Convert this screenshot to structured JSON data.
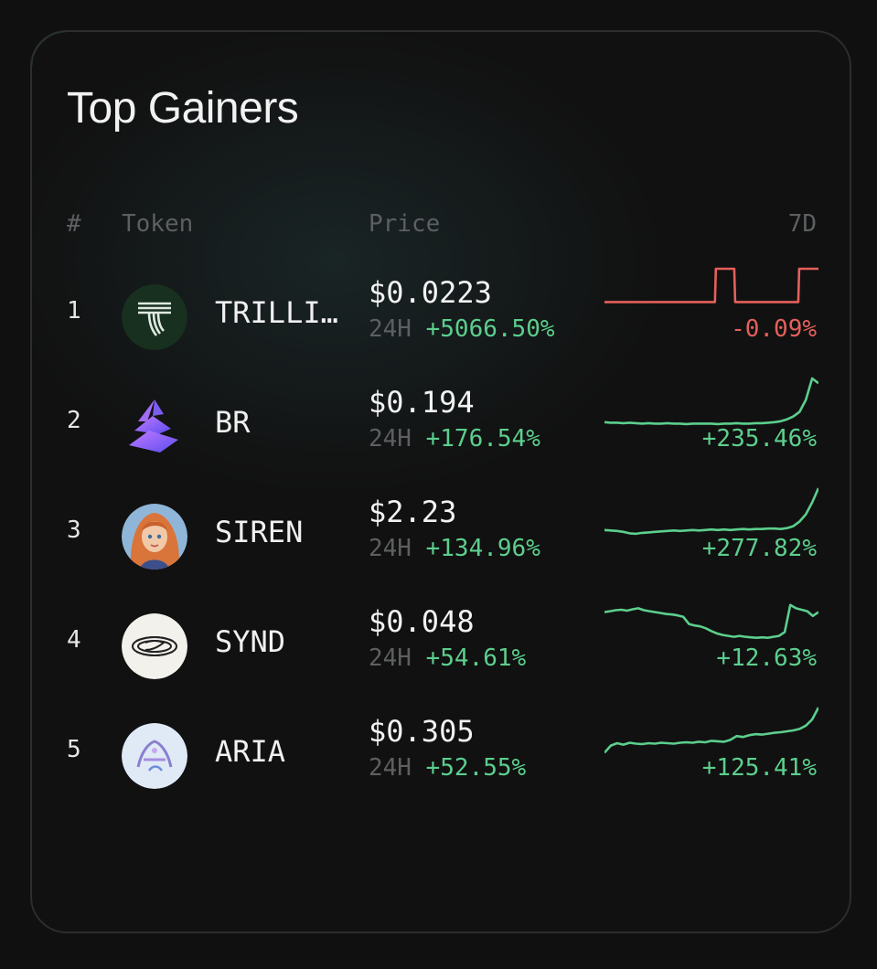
{
  "card": {
    "title": "Top Gainers",
    "columns": {
      "rank": "#",
      "token": "Token",
      "price": "Price",
      "period": "7D"
    },
    "change_label": "24H"
  },
  "colors": {
    "up": "#5ccf8d",
    "down": "#e5605a",
    "accent": "#5fd4e6"
  },
  "rows": [
    {
      "rank": "1",
      "symbol": "TRILLI…",
      "price": "$0.0223",
      "change_24h": "+5066.50%",
      "change_7d": "-0.09%",
      "trend": "down",
      "icon": "trillions-logo-icon",
      "sparkline": [
        0.3,
        0.3,
        0.3,
        0.3,
        0.3,
        0.3,
        0.3,
        0.3,
        0.3,
        0.3,
        0.3,
        0.3,
        0.3,
        0.3,
        0.3,
        0.3,
        0.3,
        0.3,
        0.3,
        0.3,
        0.3,
        0.3,
        0.3,
        0.3,
        0.3,
        0.3,
        0.3,
        0.3,
        0.3,
        0.3,
        0.3,
        0.3,
        0.3,
        0.3,
        0.3,
        0.3,
        0.3,
        0.3,
        0.3,
        0.3,
        0.3,
        0.3,
        0.3,
        0.3,
        0.3,
        0.3,
        0.3,
        0.3,
        0.3,
        0.3,
        0.3,
        0.3,
        0.3,
        0.3,
        0.3,
        0.3,
        0.3,
        0.3,
        0.3,
        0.3,
        0.3,
        0.3,
        0.3,
        0.3,
        0.3,
        0.3,
        0.3,
        0.3,
        0.3,
        0.3,
        0.3,
        0.3,
        0.3,
        0.3,
        0.3,
        0.3,
        0.3,
        0.3,
        0.3,
        0.3,
        0.3,
        0.3,
        0.3,
        0.3,
        0.3,
        0.3,
        0.3,
        0.3,
        0.3,
        0.3,
        0.3,
        0.3,
        0.3,
        0.3,
        0.3,
        0.3,
        0.3,
        0.3,
        0.3,
        0.3,
        0.3,
        0.3,
        0.3,
        0.3,
        0.3,
        0.3,
        0.3,
        0.3,
        0.3,
        0.3,
        0.3,
        0.3,
        0.3,
        0.3,
        0.3,
        0.3,
        0.3,
        0.3,
        0.3,
        0.3,
        0.3,
        0.3,
        0.3,
        0.3,
        0.3,
        0.3,
        0.3,
        1,
        1,
        1,
        1,
        1,
        1,
        1,
        1,
        1,
        1,
        1,
        1,
        1,
        1,
        1,
        1,
        1,
        1,
        1,
        1,
        1,
        1,
        0.3,
        0.3,
        0.3,
        0.3,
        0.3,
        0.3,
        0.3,
        0.3,
        0.3,
        0.3,
        0.3,
        0.3,
        0.3,
        0.3,
        0.3,
        0.3,
        0.3,
        0.3,
        0.3,
        0.3,
        0.3,
        0.3,
        0.3,
        0.3,
        0.3,
        0.3,
        0.3,
        0.3,
        0.3,
        0.3,
        0.3,
        0.3,
        0.3,
        0.3,
        0.3,
        0.3,
        0.3,
        0.3,
        0.3,
        0.3,
        0.3,
        0.3,
        0.3,
        0.3,
        0.3,
        0.3,
        0.3,
        0.3,
        0.3,
        0.3,
        0.3,
        0.3,
        0.3,
        0.3,
        0.3,
        0.3,
        0.3,
        0.3,
        0.3,
        0.3,
        0.3,
        0.3,
        0.3,
        0.3,
        0.3,
        0.3,
        0.3,
        0.3,
        0.3,
        0.3,
        0.3,
        0.3,
        0.3,
        1,
        1,
        1,
        1,
        1,
        1,
        1,
        1,
        1,
        1,
        1,
        1,
        1,
        1,
        1,
        1,
        1,
        1,
        1,
        1,
        1,
        1,
        1
      ]
    },
    {
      "rank": "2",
      "symbol": "BR",
      "price": "$0.194",
      "change_24h": "+176.54%",
      "change_7d": "+235.46%",
      "trend": "up",
      "icon": "bedrock-logo-icon",
      "sparkline": [
        0.08,
        0.07,
        0.07,
        0.06,
        0.07,
        0.06,
        0.05,
        0.06,
        0.05,
        0.05,
        0.06,
        0.05,
        0.05,
        0.04,
        0.05,
        0.05,
        0.05,
        0.05,
        0.04,
        0.05,
        0.05,
        0.06,
        0.05,
        0.05,
        0.06,
        0.06,
        0.07,
        0.08,
        0.1,
        0.14,
        0.2,
        0.3,
        0.55,
        1.0,
        0.9
      ]
    },
    {
      "rank": "3",
      "symbol": "SIREN",
      "price": "$2.23",
      "change_24h": "+134.96%",
      "change_7d": "+277.82%",
      "trend": "up",
      "icon": "siren-avatar-icon",
      "sparkline": [
        0.12,
        0.11,
        0.1,
        0.08,
        0.05,
        0.04,
        0.06,
        0.07,
        0.08,
        0.09,
        0.1,
        0.11,
        0.1,
        0.11,
        0.12,
        0.11,
        0.12,
        0.13,
        0.12,
        0.13,
        0.12,
        0.13,
        0.14,
        0.13,
        0.14,
        0.14,
        0.15,
        0.15,
        0.14,
        0.16,
        0.2,
        0.3,
        0.45,
        0.7,
        1.0
      ]
    },
    {
      "rank": "4",
      "symbol": "SYND",
      "price": "$0.048",
      "change_24h": "+54.61%",
      "change_7d": "+12.63%",
      "trend": "up",
      "icon": "syndicate-logo-icon",
      "sparkline": [
        0.7,
        0.72,
        0.74,
        0.75,
        0.73,
        0.76,
        0.78,
        0.74,
        0.72,
        0.7,
        0.68,
        0.66,
        0.65,
        0.63,
        0.6,
        0.45,
        0.42,
        0.4,
        0.36,
        0.3,
        0.25,
        0.22,
        0.2,
        0.18,
        0.2,
        0.18,
        0.17,
        0.16,
        0.17,
        0.16,
        0.18,
        0.2,
        0.28,
        0.85,
        0.78,
        0.75,
        0.72,
        0.62,
        0.7
      ]
    },
    {
      "rank": "5",
      "symbol": "ARIA",
      "price": "$0.305",
      "change_24h": "+52.55%",
      "change_7d": "+125.41%",
      "trend": "up",
      "icon": "aria-avatar-icon",
      "sparkline": [
        0.05,
        0.2,
        0.25,
        0.22,
        0.26,
        0.24,
        0.23,
        0.25,
        0.24,
        0.26,
        0.25,
        0.24,
        0.26,
        0.27,
        0.26,
        0.28,
        0.27,
        0.3,
        0.29,
        0.28,
        0.32,
        0.4,
        0.38,
        0.42,
        0.44,
        0.43,
        0.45,
        0.47,
        0.48,
        0.5,
        0.52,
        0.55,
        0.62,
        0.75,
        1.0
      ]
    }
  ]
}
